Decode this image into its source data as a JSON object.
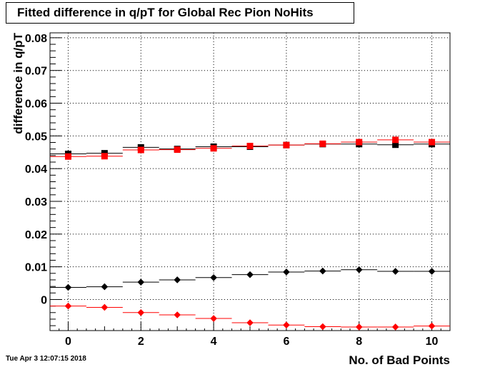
{
  "chart_data": {
    "type": "scatter",
    "title": "Fitted difference in q/pT for Global Rec Pion NoHits",
    "xlabel": "No. of Bad Points",
    "ylabel": "difference in q/pT",
    "xlim": [
      -0.5,
      10.5
    ],
    "ylim": [
      -0.0095,
      0.0815
    ],
    "grid": true,
    "x_ticks": [
      0,
      2,
      4,
      6,
      8,
      10
    ],
    "y_ticks": [
      0,
      0.01,
      0.02,
      0.03,
      0.04,
      0.05,
      0.06,
      0.07,
      0.08
    ],
    "y_tick_labels": [
      "0",
      "0.01",
      "0.02",
      "0.03",
      "0.04",
      "0.05",
      "0.06",
      "0.07",
      "0.08"
    ],
    "x": [
      0,
      1,
      2,
      3,
      4,
      5,
      6,
      7,
      8,
      9,
      10
    ],
    "series": [
      {
        "color": "#000000",
        "marker": "square",
        "values": [
          0.0445,
          0.0447,
          0.0465,
          0.046,
          0.0467,
          0.0467,
          0.0472,
          0.0475,
          0.0475,
          0.0473,
          0.0475
        ]
      },
      {
        "color": "#ff0000",
        "marker": "square",
        "values": [
          0.0437,
          0.0438,
          0.0457,
          0.0458,
          0.0462,
          0.0469,
          0.0472,
          0.0476,
          0.0481,
          0.0488,
          0.0481
        ]
      },
      {
        "color": "#000000",
        "marker": "diamond",
        "values": [
          0.0037,
          0.0039,
          0.0053,
          0.006,
          0.0067,
          0.0076,
          0.0084,
          0.0087,
          0.0091,
          0.0086,
          0.0086
        ]
      },
      {
        "color": "#ff0000",
        "marker": "diamond",
        "values": [
          -0.002,
          -0.0024,
          -0.004,
          -0.0047,
          -0.0058,
          -0.0071,
          -0.0078,
          -0.0083,
          -0.0084,
          -0.0084,
          -0.0081
        ]
      }
    ]
  },
  "timestamp": "Tue Apr  3 12:07:15 2018"
}
